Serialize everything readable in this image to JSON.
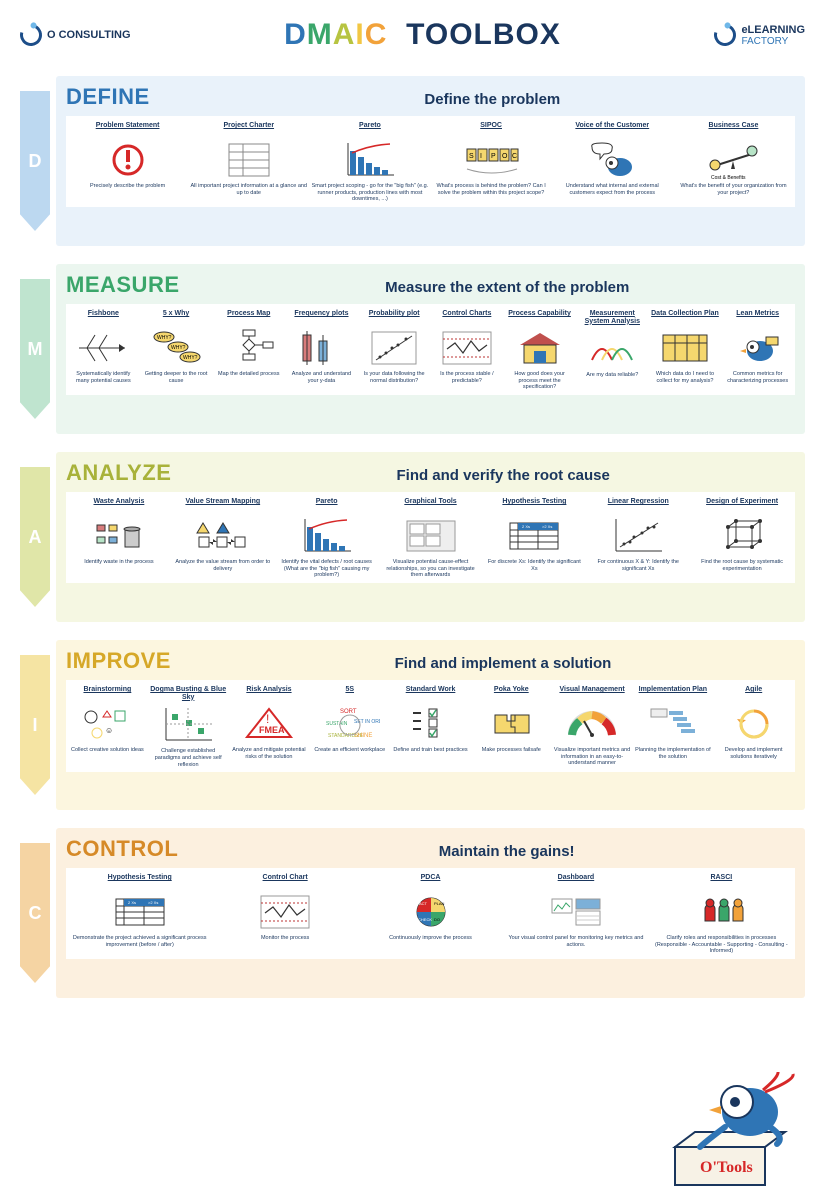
{
  "header": {
    "logo_left": "O CONSULTING",
    "logo_right_top": "eLEARNING",
    "logo_right_bottom": "FACTORY",
    "title_word2": "TOOLBOX"
  },
  "phases": [
    {
      "key": "define",
      "letter": "D",
      "name": "DEFINE",
      "subtitle": "Define the problem",
      "tools": [
        {
          "title": "Problem Statement",
          "desc": "Precisely describe the problem",
          "icon": "exclaim"
        },
        {
          "title": "Project Charter",
          "desc": "All important project information at a glance and up to date",
          "icon": "charter"
        },
        {
          "title": "Pareto",
          "desc": "Smart project scoping - go for the \"big fish\" (e.g. runner products, production lines with most downtimes, ...)",
          "icon": "pareto"
        },
        {
          "title": "SIPOC",
          "desc": "What's process is behind the problem? Can I solve the problem within this project scope?",
          "icon": "sipoc"
        },
        {
          "title": "Voice of the Customer",
          "desc": "Understand what internal and external customers expect from the process",
          "icon": "voc"
        },
        {
          "title": "Business Case",
          "desc": "What's the benefit of your organization from your project?",
          "icon": "seesaw"
        }
      ]
    },
    {
      "key": "measure",
      "letter": "M",
      "name": "MEASURE",
      "subtitle": "Measure the extent of the problem",
      "tools": [
        {
          "title": "Fishbone",
          "desc": "Systematically identify many potential causes",
          "icon": "fishbone"
        },
        {
          "title": "5 x Why",
          "desc": "Getting deeper to the root cause",
          "icon": "why"
        },
        {
          "title": "Process Map",
          "desc": "Map the detailed process",
          "icon": "flow"
        },
        {
          "title": "Frequency plots",
          "desc": "Analyze and understand your y-data",
          "icon": "freq"
        },
        {
          "title": "Probability plot",
          "desc": "Is your data following the normal distribution?",
          "icon": "prob"
        },
        {
          "title": "Control Charts",
          "desc": "Is the process stable / predictable?",
          "icon": "ctrl"
        },
        {
          "title": "Process Capability",
          "desc": "How good does your process meet the specification?",
          "icon": "house"
        },
        {
          "title": "Measurement System Analysis",
          "desc": "Are my data reliable?",
          "icon": "msa"
        },
        {
          "title": "Data Collection Plan",
          "desc": "Which data do I need to collect for my analysis?",
          "icon": "dcp"
        },
        {
          "title": "Lean Metrics",
          "desc": "Common metrics for characterizing processes",
          "icon": "bird"
        }
      ]
    },
    {
      "key": "analyze",
      "letter": "A",
      "name": "ANALYZE",
      "subtitle": "Find and verify the root cause",
      "tools": [
        {
          "title": "Waste Analysis",
          "desc": "Identify waste in the process",
          "icon": "waste"
        },
        {
          "title": "Value Stream Mapping",
          "desc": "Analyze the value stream from order to delivery",
          "icon": "vsm"
        },
        {
          "title": "Pareto",
          "desc": "Identify the vital defects / root causes (What are the \"big fish\" causing my problem?)",
          "icon": "pareto2"
        },
        {
          "title": "Graphical Tools",
          "desc": "Visualize potential cause-effect relationships, so you can investigate them afterwards",
          "icon": "graph"
        },
        {
          "title": "Hypothesis Testing",
          "desc": "For discrete Xs: Identify the significant Xs",
          "icon": "hyp"
        },
        {
          "title": "Linear Regression",
          "desc": "For continuous X & Y: Identify the significant Xs",
          "icon": "reg"
        },
        {
          "title": "Design of Experiment",
          "desc": "Find the root cause by systematic experimentation",
          "icon": "doe"
        }
      ]
    },
    {
      "key": "improve",
      "letter": "I",
      "name": "IMPROVE",
      "subtitle": "Find and implement a solution",
      "tools": [
        {
          "title": "Brainstorming",
          "desc": "Collect creative solution ideas",
          "icon": "brain"
        },
        {
          "title": "Dogma Busting & Blue Sky",
          "desc": "Challenge established paradigms and achieve self reflexion",
          "icon": "blue"
        },
        {
          "title": "Risk Analysis",
          "desc": "Analyze and mitigate potential risks of the solution",
          "icon": "fmea"
        },
        {
          "title": "5S",
          "desc": "Create an efficient workplace",
          "icon": "fives"
        },
        {
          "title": "Standard Work",
          "desc": "Define and train best practices",
          "icon": "std"
        },
        {
          "title": "Poka Yoke",
          "desc": "Make processes failsafe",
          "icon": "poka"
        },
        {
          "title": "Visual Management",
          "desc": "Visualize important metrics and information in an easy-to-understand manner",
          "icon": "gauge"
        },
        {
          "title": "Implementation Plan",
          "desc": "Planning the implementation of the solution",
          "icon": "gantt"
        },
        {
          "title": "Agile",
          "desc": "Develop and implement solutions iteratively",
          "icon": "agile"
        }
      ]
    },
    {
      "key": "control",
      "letter": "C",
      "name": "CONTROL",
      "subtitle": "Maintain the gains!",
      "tools": [
        {
          "title": "Hypothesis Testing",
          "desc": "Demonstrate the project achieved a significant process improvement (before / after)",
          "icon": "hyp"
        },
        {
          "title": "Control Chart",
          "desc": "Monitor the process",
          "icon": "ctrl"
        },
        {
          "title": "PDCA",
          "desc": "Continuously improve the process",
          "icon": "pdca"
        },
        {
          "title": "Dashboard",
          "desc": "Your visual control panel for monitoring key metrics and actions.",
          "icon": "dash"
        },
        {
          "title": "RASCI",
          "desc": "Clarify roles and responsibilities in processes (Responsible - Accountable - Supporting - Consulting - Informed)",
          "icon": "rasci"
        }
      ]
    }
  ],
  "mascot_box_label": "O'Tools",
  "colors": {
    "navy": "#1a365d",
    "blue": "#2f75b5",
    "green": "#3aa66a",
    "olive": "#a8b23a",
    "amber": "#d6a828",
    "orange": "#d68a28",
    "red": "#d62828"
  }
}
